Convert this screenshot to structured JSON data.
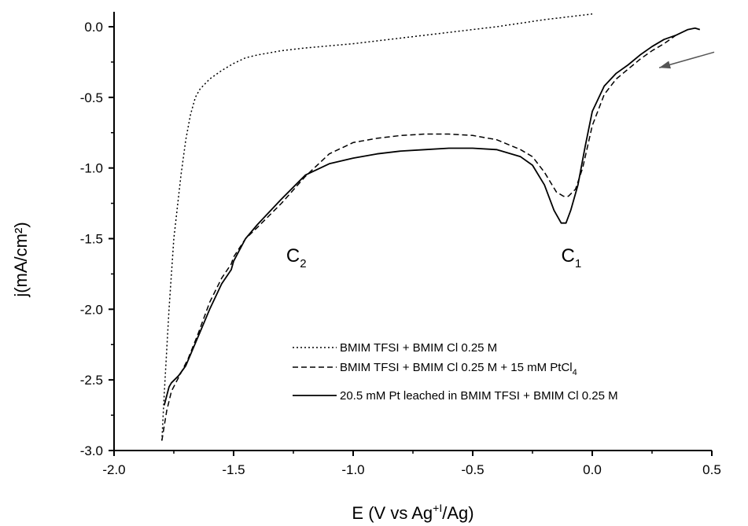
{
  "chart_data": {
    "type": "line",
    "xlabel_main": "E (V vs Ag",
    "xlabel_sup": "+I",
    "xlabel_tail": "/Ag)",
    "ylabel": "j(mA/cm²)",
    "xlim": [
      -2.0,
      0.5
    ],
    "ylim": [
      -3.0,
      0.1
    ],
    "x_ticks": [
      -2.0,
      -1.5,
      -1.0,
      -0.5,
      0.0,
      0.5
    ],
    "x_tick_labels": [
      "-2.0",
      "-1.5",
      "-1.0",
      "-0.5",
      "0.0",
      "0.5"
    ],
    "y_ticks": [
      0.0,
      -0.5,
      -1.0,
      -1.5,
      -2.0,
      -2.5,
      -3.0
    ],
    "y_tick_labels": [
      "0.0",
      "-0.5",
      "-1.0",
      "-1.5",
      "-2.0",
      "-2.5",
      "-3.0"
    ],
    "series": [
      {
        "name": "BMIM TFSI + BMIM Cl 0.25 M",
        "style": "dotted",
        "x": [
          -1.8,
          -1.79,
          -1.77,
          -1.75,
          -1.72,
          -1.7,
          -1.68,
          -1.66,
          -1.64,
          -1.6,
          -1.55,
          -1.5,
          -1.45,
          -1.4,
          -1.3,
          -1.2,
          -1.0,
          -0.8,
          -0.6,
          -0.4,
          -0.2,
          0.0
        ],
        "y": [
          -2.93,
          -2.6,
          -2.0,
          -1.5,
          -1.05,
          -0.8,
          -0.62,
          -0.5,
          -0.44,
          -0.37,
          -0.31,
          -0.26,
          -0.22,
          -0.2,
          -0.17,
          -0.15,
          -0.12,
          -0.08,
          -0.04,
          0.0,
          0.05,
          0.09
        ]
      },
      {
        "name": "BMIM TFSI + BMIM Cl 0.25 M + 15 mM PtCl",
        "name_sub": "4",
        "style": "dashed",
        "x": [
          -1.8,
          -1.78,
          -1.76,
          -1.72,
          -1.69,
          -1.65,
          -1.6,
          -1.55,
          -1.51,
          -1.5,
          -1.45,
          -1.4,
          -1.3,
          -1.2,
          -1.1,
          -1.0,
          -0.9,
          -0.8,
          -0.7,
          -0.6,
          -0.5,
          -0.4,
          -0.3,
          -0.25,
          -0.2,
          -0.15,
          -0.12,
          -0.1,
          -0.07,
          -0.04,
          0.0,
          0.05,
          0.1,
          0.15,
          0.2,
          0.25,
          0.3,
          0.35
        ],
        "y": [
          -2.93,
          -2.72,
          -2.58,
          -2.45,
          -2.35,
          -2.18,
          -1.95,
          -1.78,
          -1.68,
          -1.63,
          -1.5,
          -1.42,
          -1.25,
          -1.06,
          -0.9,
          -0.82,
          -0.79,
          -0.77,
          -0.76,
          -0.76,
          -0.77,
          -0.8,
          -0.87,
          -0.92,
          -1.03,
          -1.17,
          -1.2,
          -1.2,
          -1.15,
          -1.0,
          -0.7,
          -0.48,
          -0.37,
          -0.3,
          -0.23,
          -0.17,
          -0.12,
          -0.06
        ]
      },
      {
        "name": "20.5 mM Pt leached in BMIM TFSI + BMIM Cl 0.25 M",
        "style": "solid",
        "x": [
          -1.79,
          -1.77,
          -1.76,
          -1.73,
          -1.7,
          -1.65,
          -1.6,
          -1.55,
          -1.51,
          -1.5,
          -1.45,
          -1.4,
          -1.3,
          -1.2,
          -1.1,
          -1.0,
          -0.9,
          -0.8,
          -0.7,
          -0.6,
          -0.5,
          -0.4,
          -0.3,
          -0.25,
          -0.2,
          -0.16,
          -0.13,
          -0.11,
          -0.09,
          -0.06,
          -0.03,
          0.0,
          0.05,
          0.1,
          0.15,
          0.2,
          0.25,
          0.3,
          0.35,
          0.4,
          0.43,
          0.45
        ],
        "y": [
          -2.68,
          -2.55,
          -2.52,
          -2.47,
          -2.4,
          -2.2,
          -2.0,
          -1.82,
          -1.72,
          -1.66,
          -1.5,
          -1.4,
          -1.22,
          -1.05,
          -0.97,
          -0.93,
          -0.9,
          -0.88,
          -0.87,
          -0.86,
          -0.86,
          -0.87,
          -0.92,
          -0.98,
          -1.12,
          -1.3,
          -1.39,
          -1.39,
          -1.3,
          -1.12,
          -0.85,
          -0.6,
          -0.42,
          -0.33,
          -0.27,
          -0.2,
          -0.14,
          -0.09,
          -0.06,
          -0.02,
          -0.01,
          -0.02
        ]
      }
    ],
    "annotations": [
      {
        "text": "C",
        "sub": "2",
        "x": -1.28,
        "y": -1.62
      },
      {
        "text": "C",
        "sub": "1",
        "x": -0.13,
        "y": -1.62
      }
    ],
    "legend_position": "bottom-right",
    "arrow": {
      "x0": 0.51,
      "y0": -0.18,
      "x1": 0.28,
      "y1": -0.29
    }
  }
}
